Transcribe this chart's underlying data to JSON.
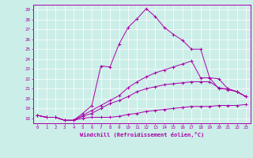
{
  "xlabel": "Windchill (Refroidissement éolien,°C)",
  "background_color": "#cceee8",
  "line_color": "#aa00aa",
  "xlim": [
    -0.5,
    23.5
  ],
  "ylim": [
    17.5,
    29.5
  ],
  "xticks": [
    0,
    1,
    2,
    3,
    4,
    5,
    6,
    7,
    8,
    9,
    10,
    11,
    12,
    13,
    14,
    15,
    16,
    17,
    18,
    19,
    20,
    21,
    22,
    23
  ],
  "yticks": [
    18,
    19,
    20,
    21,
    22,
    23,
    24,
    25,
    26,
    27,
    28,
    29
  ],
  "series": [
    [
      18.3,
      18.1,
      18.1,
      17.8,
      17.8,
      18.0,
      18.1,
      18.1,
      18.1,
      18.2,
      18.4,
      18.5,
      18.7,
      18.8,
      18.9,
      19.0,
      19.1,
      19.2,
      19.2,
      19.2,
      19.3,
      19.3,
      19.3,
      19.4
    ],
    [
      18.3,
      18.1,
      18.1,
      17.8,
      17.8,
      18.2,
      18.5,
      19.0,
      19.5,
      19.8,
      20.2,
      20.7,
      21.0,
      21.2,
      21.4,
      21.5,
      21.6,
      21.7,
      21.7,
      21.7,
      21.1,
      20.9,
      20.7,
      20.2
    ],
    [
      18.3,
      18.1,
      18.1,
      17.8,
      17.8,
      18.3,
      18.8,
      19.3,
      19.8,
      20.3,
      21.1,
      21.7,
      22.2,
      22.6,
      22.9,
      23.2,
      23.5,
      23.8,
      22.1,
      22.1,
      22.0,
      21.0,
      20.7,
      20.2
    ],
    [
      18.3,
      18.1,
      18.1,
      17.8,
      17.8,
      18.5,
      19.3,
      23.3,
      23.2,
      25.5,
      27.2,
      28.1,
      29.1,
      28.3,
      27.2,
      26.5,
      25.9,
      25.0,
      25.0,
      22.1,
      21.0,
      21.0,
      20.7,
      20.2
    ]
  ]
}
